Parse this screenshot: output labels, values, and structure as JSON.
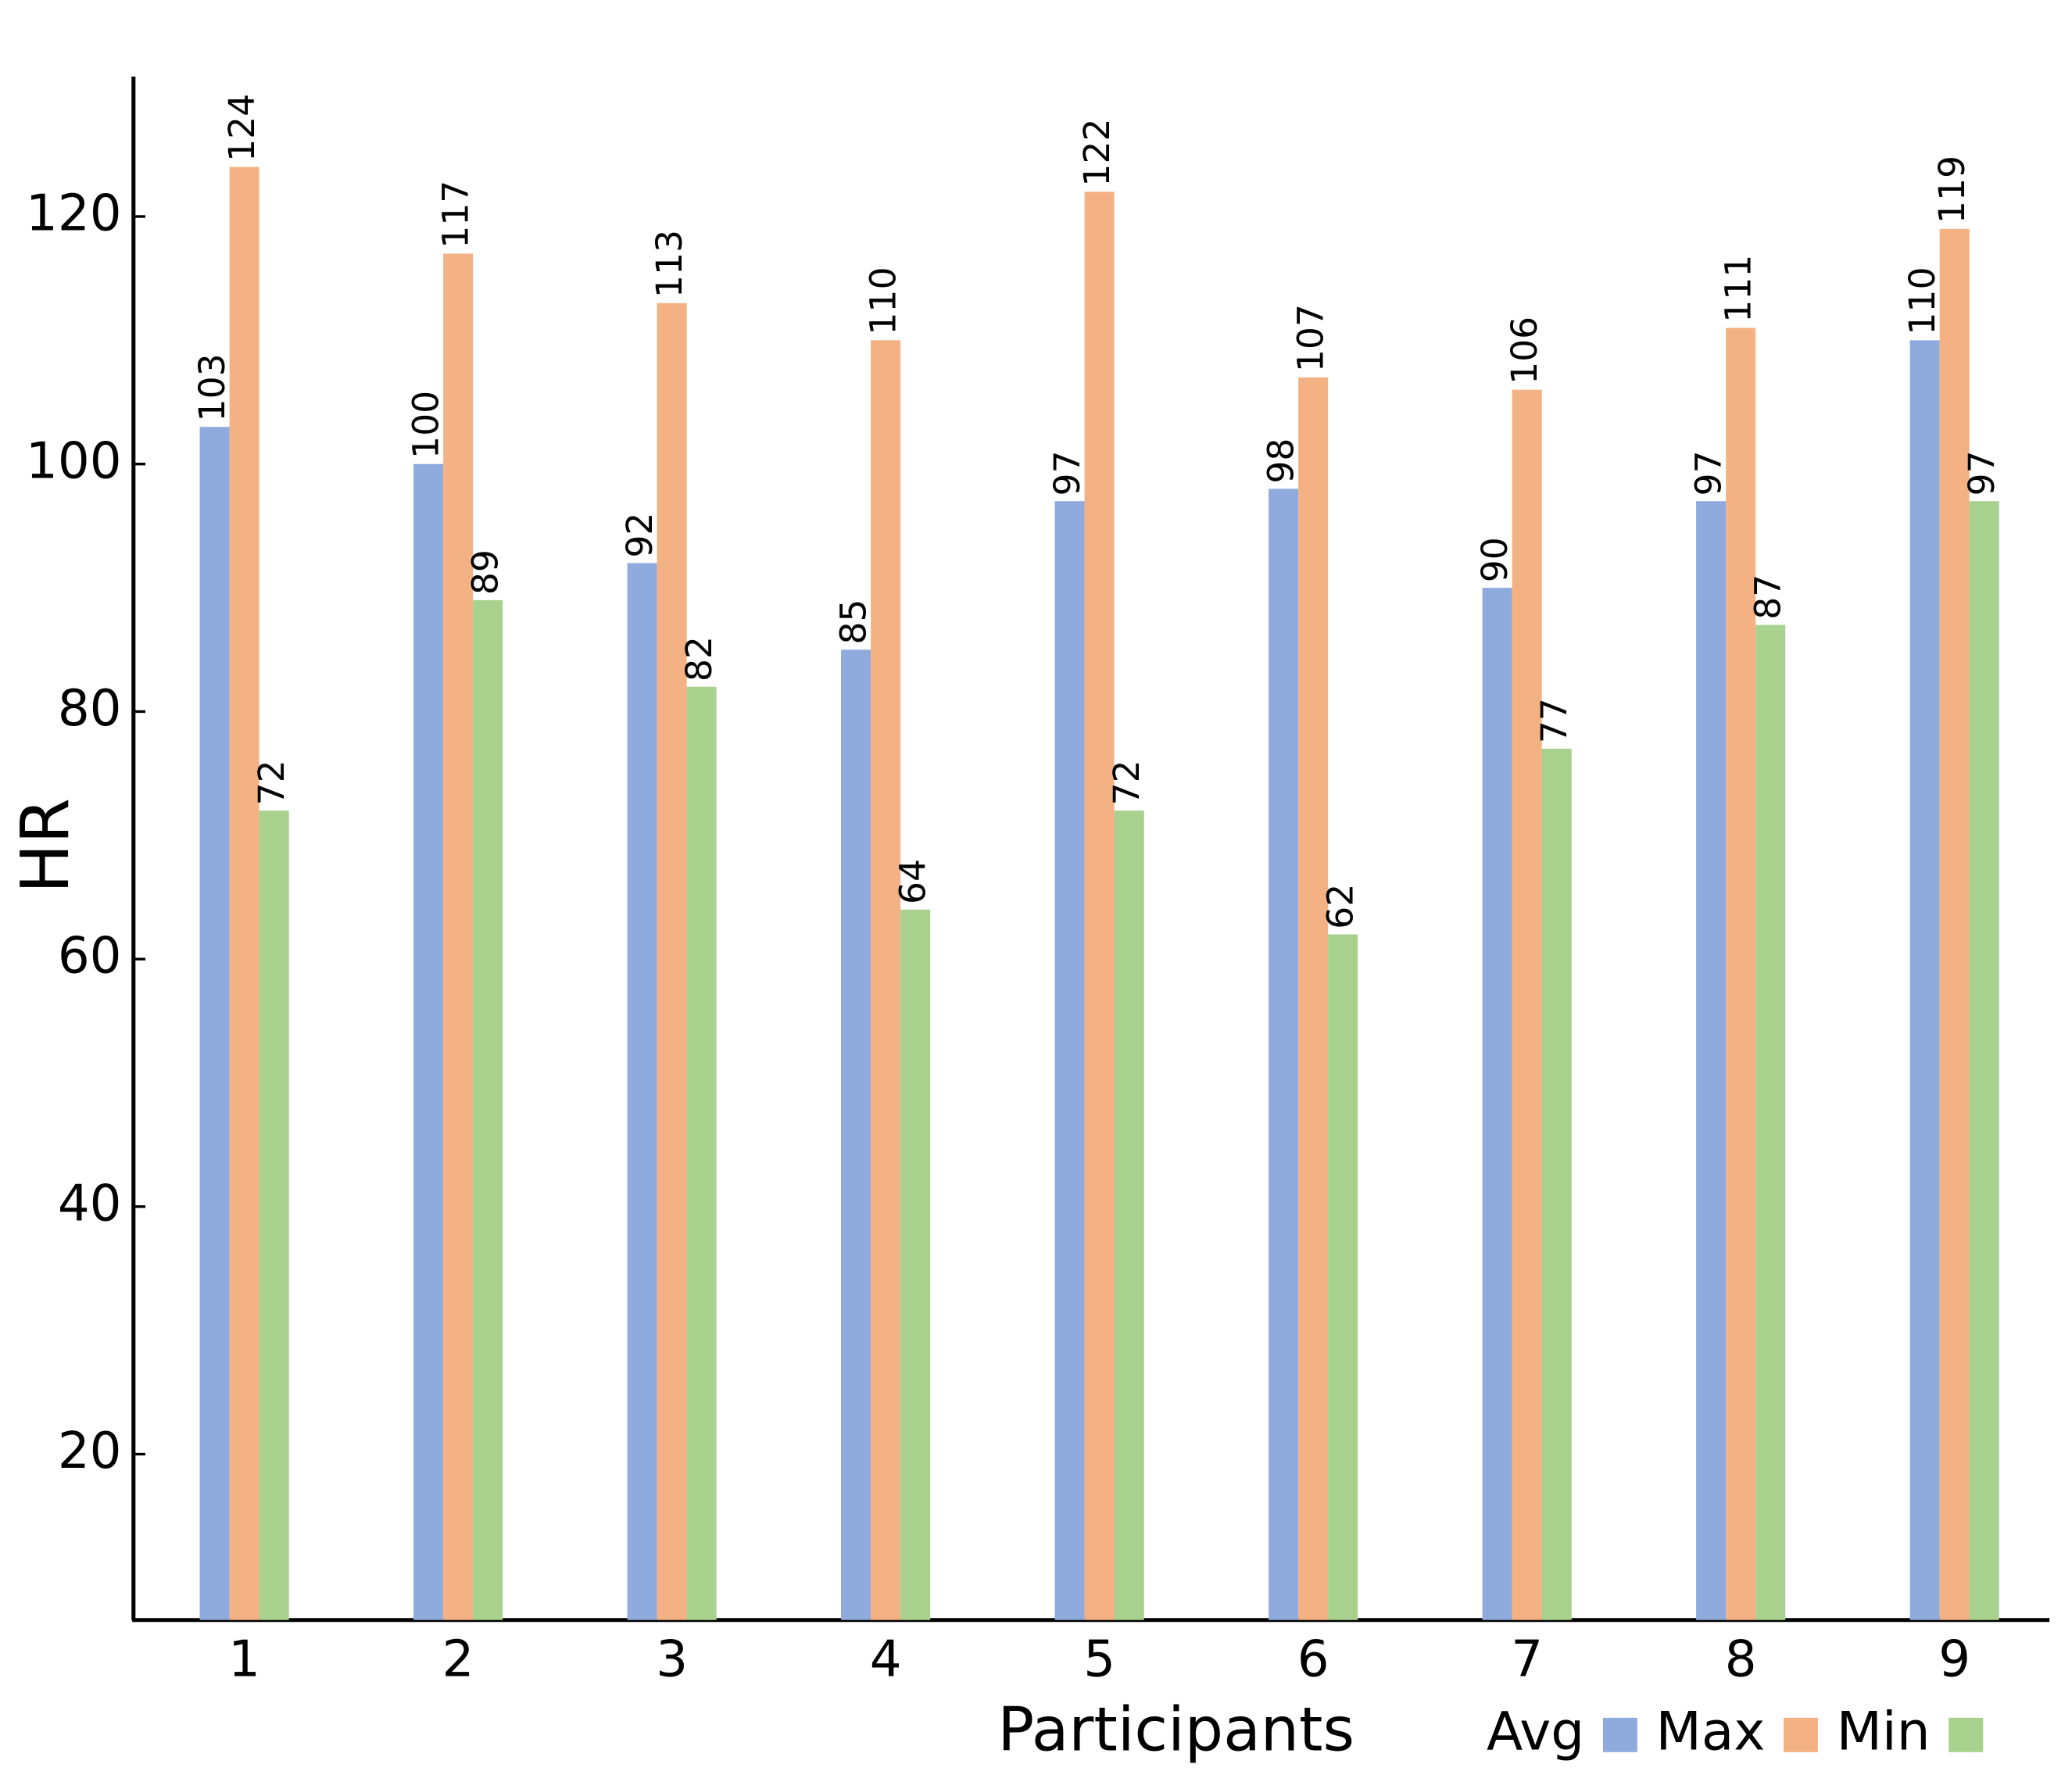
{
  "chart_data": {
    "type": "bar",
    "x_label": "Participants",
    "y_label": "HR",
    "categories": [
      "1",
      "2",
      "3",
      "4",
      "5",
      "6",
      "7",
      "8",
      "9"
    ],
    "series": [
      {
        "name": "Avg",
        "color": "#8faadc",
        "values": [
          103,
          100,
          92,
          85,
          97,
          98,
          90,
          97,
          110
        ]
      },
      {
        "name": "Max",
        "color": "#f4b183",
        "values": [
          124,
          117,
          113,
          110,
          122,
          107,
          106,
          111,
          119
        ]
      },
      {
        "name": "Min",
        "color": "#a9d18e",
        "values": [
          72,
          89,
          82,
          64,
          72,
          62,
          77,
          87,
          97
        ]
      }
    ],
    "ylim": [
      6.6,
      131.3
    ],
    "yticks": [
      20,
      40,
      60,
      80,
      100,
      120
    ],
    "grid": false,
    "legend": "lower right"
  }
}
